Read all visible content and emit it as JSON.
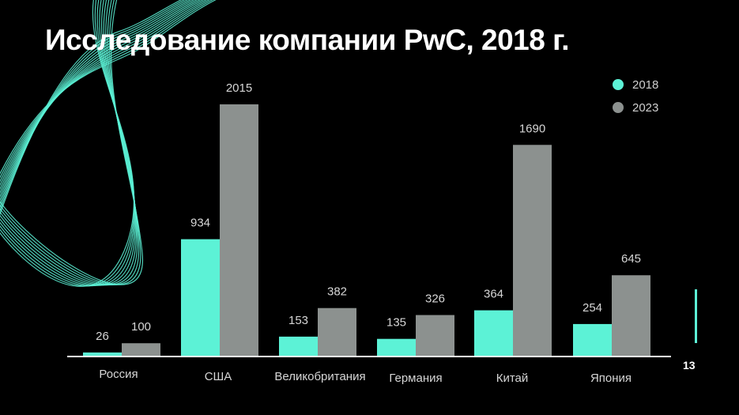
{
  "title": "Исследование компании PwC, 2018 г.",
  "page_number": "13",
  "colors": {
    "background": "#000000",
    "series_2018": "#5cf2d6",
    "series_2023": "#8c918f",
    "axis": "#ffffff",
    "decoration": "#5cf2d6"
  },
  "chart_data": {
    "type": "bar",
    "categories": [
      "Россия",
      "США",
      "Великобритания",
      "Германия",
      "Китай",
      "Япония"
    ],
    "series": [
      {
        "name": "2018",
        "values": [
          26,
          934,
          153,
          135,
          364,
          254
        ]
      },
      {
        "name": "2023",
        "values": [
          100,
          2015,
          382,
          326,
          1690,
          645
        ]
      }
    ],
    "title": "Исследование компании PwC, 2018 г.",
    "xlabel": "",
    "ylabel": "",
    "ylim": [
      0,
      2015
    ],
    "grid": false,
    "legend": "top-right",
    "data_labels": true
  }
}
